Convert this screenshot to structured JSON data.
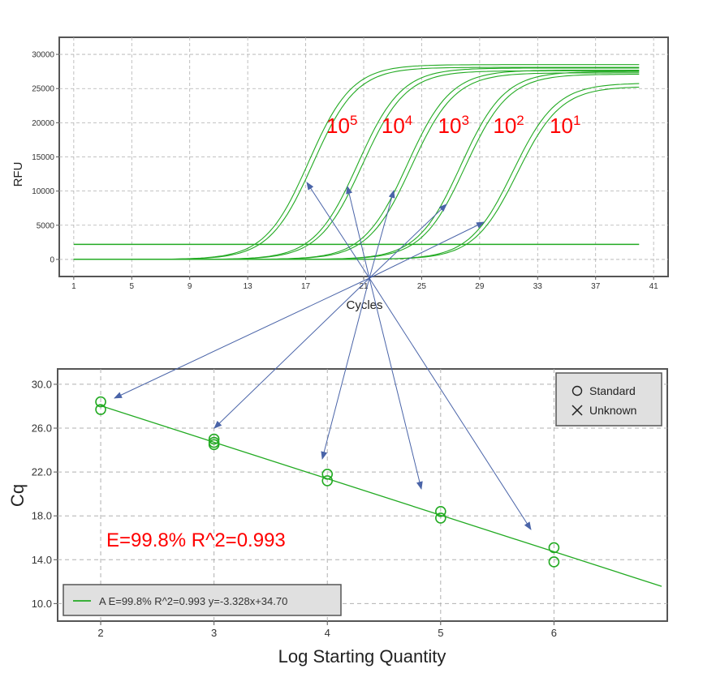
{
  "colors": {
    "curve": "#22aa22",
    "threshold": "#22aa22",
    "arrow": "#4a64a8",
    "annotation": "#ff0000",
    "grid": "#b0b0b0",
    "legend_bg": "#e0e0e0"
  },
  "chart_data": [
    {
      "type": "line",
      "title": "",
      "xlabel": "Cycles",
      "ylabel": "RFU",
      "xlim": [
        0,
        42
      ],
      "ylim": [
        -2500,
        32500
      ],
      "xticks": [
        1,
        5,
        9,
        13,
        17,
        21,
        25,
        29,
        33,
        37,
        41
      ],
      "xtick_labels": [
        "1",
        "5",
        "9",
        "13",
        "17",
        "21",
        "25",
        "29",
        "33",
        "37",
        "41"
      ],
      "yticks": [
        0,
        5000,
        10000,
        15000,
        20000,
        25000,
        30000
      ],
      "ytick_labels": [
        "0",
        "5000",
        "10000",
        "15000",
        "20000",
        "25000",
        "30000"
      ],
      "grid": true,
      "threshold": 2200,
      "x_end": 40,
      "annotations": [
        {
          "base": "10",
          "exp": "5",
          "x": 19.5,
          "y": 18500
        },
        {
          "base": "10",
          "exp": "4",
          "x": 23.3,
          "y": 18500
        },
        {
          "base": "10",
          "exp": "3",
          "x": 27.2,
          "y": 18500
        },
        {
          "base": "10",
          "exp": "2",
          "x": 31.0,
          "y": 18500
        },
        {
          "base": "10",
          "exp": "1",
          "x": 34.9,
          "y": 18500
        }
      ],
      "series": [
        {
          "midpoint": 17.2,
          "plateau": 28500,
          "slope": 1.5
        },
        {
          "midpoint": 17.5,
          "plateau": 28100,
          "slope": 1.5
        },
        {
          "midpoint": 20.6,
          "plateau": 28000,
          "slope": 1.5
        },
        {
          "midpoint": 20.9,
          "plateau": 27600,
          "slope": 1.5
        },
        {
          "midpoint": 24.0,
          "plateau": 27700,
          "slope": 1.5
        },
        {
          "midpoint": 24.3,
          "plateau": 27300,
          "slope": 1.5
        },
        {
          "midpoint": 27.7,
          "plateau": 27500,
          "slope": 1.5
        },
        {
          "midpoint": 28.0,
          "plateau": 27100,
          "slope": 1.5
        },
        {
          "midpoint": 31.3,
          "plateau": 25800,
          "slope": 1.5
        },
        {
          "midpoint": 31.6,
          "plateau": 25300,
          "slope": 1.5
        }
      ]
    },
    {
      "type": "scatter",
      "title": "",
      "xlabel": "Log Starting Quantity",
      "ylabel": "Cq",
      "xlim": [
        1.62,
        7.0
      ],
      "ylim": [
        8.4,
        31.4
      ],
      "xticks": [
        2,
        3,
        4,
        5,
        6
      ],
      "xtick_labels": [
        "2",
        "3",
        "4",
        "5",
        "6"
      ],
      "yticks": [
        10,
        14,
        18,
        22,
        26,
        30
      ],
      "ytick_labels": [
        "10.0",
        "14.0",
        "18.0",
        "22.0",
        "26.0",
        "30.0"
      ],
      "grid": true,
      "series": [
        {
          "name": "Standard",
          "marker": "circle",
          "points": [
            [
              2,
              28.4
            ],
            [
              2,
              27.7
            ],
            [
              3,
              25.0
            ],
            [
              3,
              24.7
            ],
            [
              3,
              24.5
            ],
            [
              4,
              21.8
            ],
            [
              4,
              21.2
            ],
            [
              5,
              18.4
            ],
            [
              5,
              17.8
            ],
            [
              6,
              15.1
            ],
            [
              6,
              13.8
            ]
          ]
        },
        {
          "name": "Unknown",
          "marker": "x",
          "points": []
        }
      ],
      "fit": {
        "slope": -3.328,
        "intercept": 34.7,
        "x_range": [
          2,
          6.95
        ]
      },
      "annotation": "E=99.8%  R^2=0.993",
      "fit_legend": "A  E=99.8% R^2=0.993 y=-3.328x+34.70",
      "legend": "top-right"
    }
  ]
}
